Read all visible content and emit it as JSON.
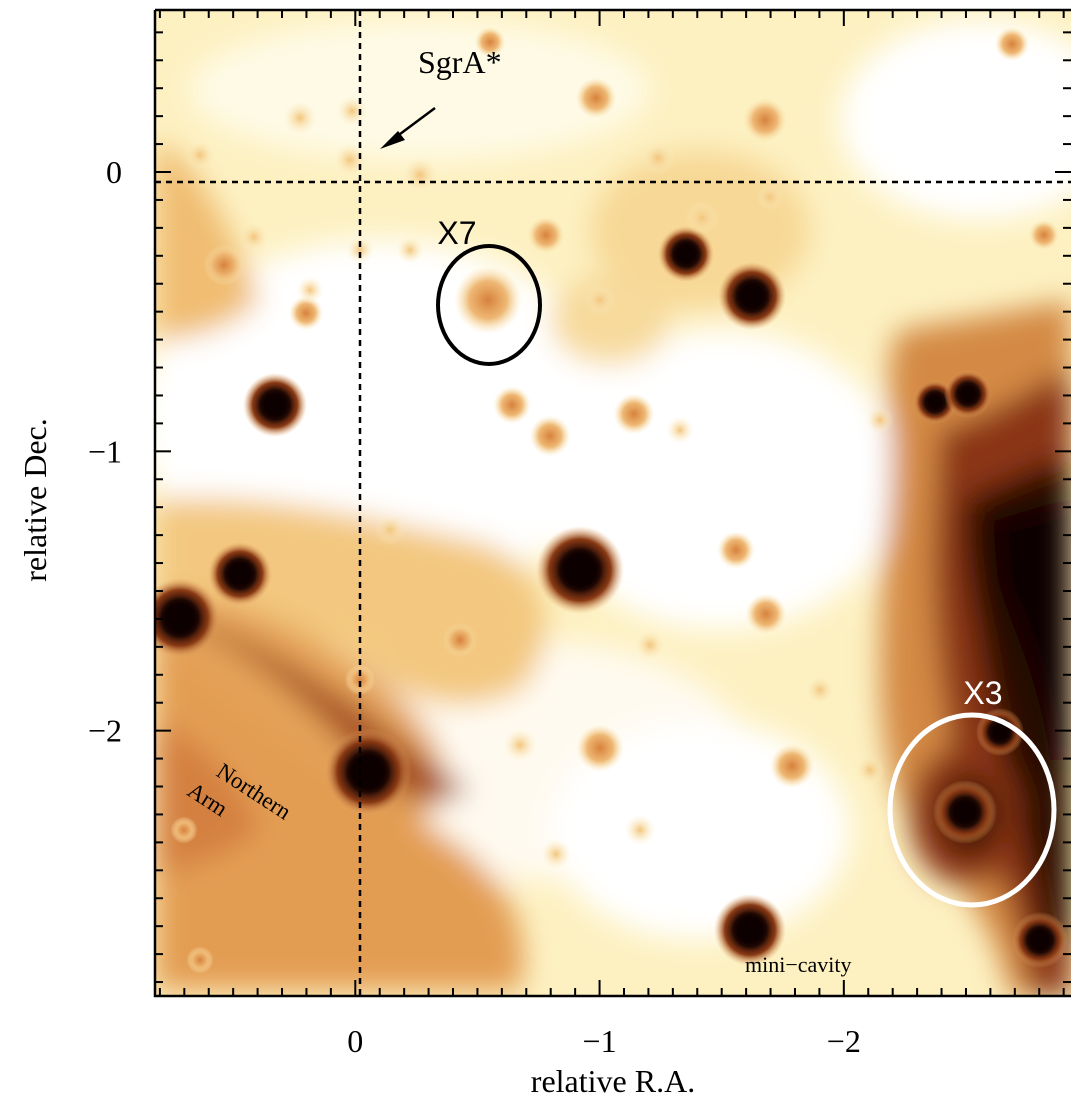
{
  "chart_data": {
    "type": "heatmap",
    "xlabel": "relative R.A.",
    "ylabel": "relative Dec.",
    "xlim": [
      0.82,
      -2.93
    ],
    "ylim": [
      -2.95,
      0.58
    ],
    "x_tick_values": [
      0,
      -1,
      -2
    ],
    "x_tick_labels": [
      "0",
      "−1",
      "−2"
    ],
    "y_tick_values": [
      0,
      -1,
      -2
    ],
    "y_tick_labels": [
      "0",
      "−1",
      "−2"
    ],
    "reference_lines": {
      "x": 0,
      "y": 0
    },
    "colormap": [
      "#ffffff",
      "#fdf1c2",
      "#f3c77f",
      "#d98f4a",
      "#a8501f",
      "#5a1e0a",
      "#0a0503"
    ],
    "sources": [
      {
        "name": "X7",
        "x": -0.52,
        "y": -0.45,
        "color": "#000000"
      },
      {
        "name": "X3",
        "x": -2.52,
        "y": -2.28,
        "color": "#ffffff"
      }
    ],
    "annotations": {
      "sgra": "SgrA*",
      "northern": "Northern",
      "arm": "Arm",
      "minicavity": "mini−cavity"
    }
  }
}
